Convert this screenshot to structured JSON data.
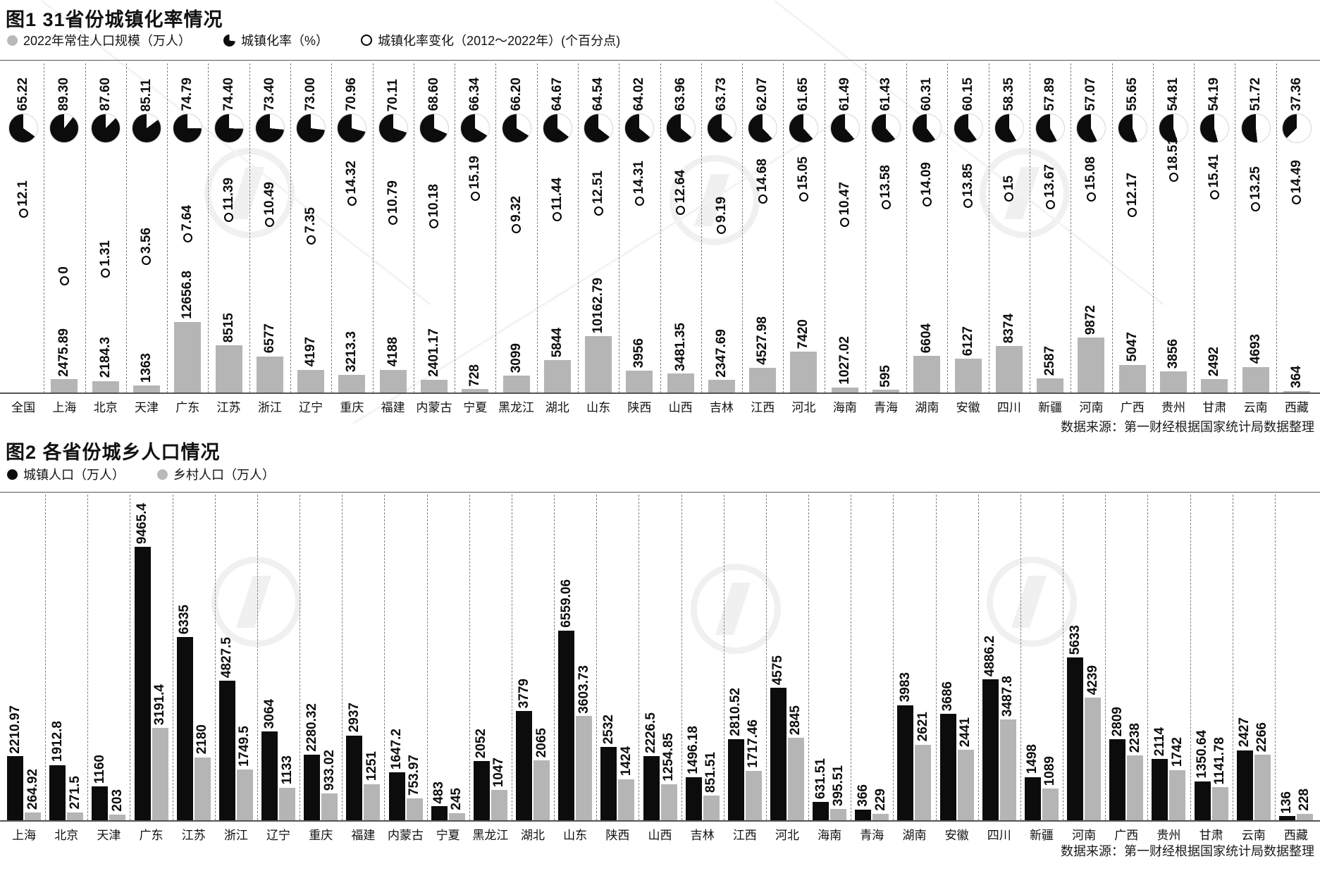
{
  "chart1": {
    "title": "图1 31省份城镇化率情况",
    "legend": {
      "population": "2022年常住人口规模（万人）",
      "rate": "城镇化率（%）",
      "change": "城镇化率变化（2012～2022年）(个百分点)"
    },
    "source": "数据来源：第一财经根据国家统计局数据整理"
  },
  "chart2": {
    "title": "图2 各省份城乡人口情况",
    "legend": {
      "urban": "城镇人口（万人）",
      "rural": "乡村人口（万人）"
    },
    "source": "数据来源：第一财经根据国家统计局数据整理"
  },
  "colors": {
    "bar_gray": "#b5b5b5",
    "bar_black": "#0c0c0c",
    "pie_black": "#0c0c0c"
  },
  "chart_data": [
    {
      "type": "bar",
      "title": "图1 31省份城镇化率情况",
      "legend_position": "top",
      "grid": "vertical-dashed",
      "categories": [
        "全国",
        "上海",
        "北京",
        "天津",
        "广东",
        "江苏",
        "浙江",
        "辽宁",
        "重庆",
        "福建",
        "内蒙古",
        "宁夏",
        "黑龙江",
        "湖北",
        "山东",
        "陕西",
        "山西",
        "吉林",
        "江西",
        "河北",
        "海南",
        "青海",
        "湖南",
        "安徽",
        "四川",
        "新疆",
        "河南",
        "广西",
        "贵州",
        "甘肃",
        "云南",
        "西藏"
      ],
      "series": [
        {
          "name": "城镇化率（%）",
          "marker": "pie",
          "values": [
            65.22,
            89.3,
            87.6,
            85.11,
            74.79,
            74.4,
            73.4,
            73.0,
            70.96,
            70.11,
            68.6,
            66.34,
            66.2,
            64.67,
            64.54,
            64.02,
            63.96,
            63.73,
            62.07,
            61.65,
            61.49,
            61.43,
            60.31,
            60.15,
            58.35,
            57.89,
            57.07,
            55.65,
            54.81,
            54.19,
            51.72,
            37.36
          ],
          "labels": [
            "65.22",
            "89.30",
            "87.60",
            "85.11",
            "74.79",
            "74.40",
            "73.40",
            "73.00",
            "70.96",
            "70.11",
            "68.60",
            "66.34",
            "66.20",
            "64.67",
            "64.54",
            "64.02",
            "63.96",
            "63.73",
            "62.07",
            "61.65",
            "61.49",
            "61.43",
            "60.31",
            "60.15",
            "58.35",
            "57.89",
            "57.07",
            "55.65",
            "54.81",
            "54.19",
            "51.72",
            "37.36"
          ]
        },
        {
          "name": "城镇化率变化（2012～2022年）(个百分点)",
          "marker": "circle",
          "values": [
            12.1,
            0,
            1.31,
            3.56,
            7.64,
            11.39,
            10.49,
            7.35,
            14.32,
            10.79,
            10.18,
            15.19,
            9.32,
            11.44,
            12.51,
            14.31,
            12.64,
            9.19,
            14.68,
            15.05,
            10.47,
            13.58,
            14.09,
            13.85,
            15,
            13.67,
            15.08,
            12.17,
            18.51,
            15.41,
            13.25,
            14.49
          ],
          "labels": [
            "12.1",
            "0",
            "1.31",
            "3.56",
            "7.64",
            "11.39",
            "10.49",
            "7.35",
            "14.32",
            "10.79",
            "10.18",
            "15.19",
            "9.32",
            "11.44",
            "12.51",
            "14.31",
            "12.64",
            "9.19",
            "14.68",
            "15.05",
            "10.47",
            "13.58",
            "14.09",
            "13.85",
            "15",
            "13.67",
            "15.08",
            "12.17",
            "18.51",
            "15.41",
            "13.25",
            "14.49"
          ]
        },
        {
          "name": "2022年常住人口规模（万人）",
          "marker": "bar",
          "color": "#b5b5b5",
          "values": [
            null,
            2475.89,
            2184.3,
            1363,
            12656.8,
            8515,
            6577,
            4197,
            3213.3,
            4188,
            2401.17,
            728,
            3099,
            5844,
            10162.79,
            3956,
            3481.35,
            2347.69,
            4527.98,
            7420,
            1027.02,
            595,
            6604,
            6127,
            8374,
            2587,
            9872,
            5047,
            3856,
            2492,
            4693,
            364
          ],
          "labels": [
            "",
            "2475.89",
            "2184.3",
            "1363",
            "12656.8",
            "8515",
            "6577",
            "4197",
            "3213.3",
            "4188",
            "2401.17",
            "728",
            "3099",
            "5844",
            "10162.79",
            "3956",
            "3481.35",
            "2347.69",
            "4527.98",
            "7420",
            "1027.02",
            "595",
            "6604",
            "6127",
            "8374",
            "2587",
            "9872",
            "5047",
            "3856",
            "2492",
            "4693",
            "364"
          ]
        }
      ]
    },
    {
      "type": "bar",
      "title": "图2 各省份城乡人口情况",
      "legend_position": "top",
      "grid": "vertical-dashed",
      "categories": [
        "上海",
        "北京",
        "天津",
        "广东",
        "江苏",
        "浙江",
        "辽宁",
        "重庆",
        "福建",
        "内蒙古",
        "宁夏",
        "黑龙江",
        "湖北",
        "山东",
        "陕西",
        "山西",
        "吉林",
        "江西",
        "河北",
        "海南",
        "青海",
        "湖南",
        "安徽",
        "四川",
        "新疆",
        "河南",
        "广西",
        "贵州",
        "甘肃",
        "云南",
        "西藏"
      ],
      "series": [
        {
          "name": "城镇人口（万人）",
          "marker": "bar",
          "color": "#0c0c0c",
          "values": [
            2210.97,
            1912.8,
            1160,
            9465.4,
            6335,
            4827.5,
            3064,
            2280.32,
            2937,
            1647.2,
            483,
            2052,
            3779,
            6559.06,
            2532,
            2226.5,
            1496.18,
            2810.52,
            4575,
            631.51,
            366,
            3983,
            3686,
            4886.2,
            1498,
            5633,
            2809,
            2114,
            1350.64,
            2427,
            136
          ],
          "labels": [
            "2210.97",
            "1912.8",
            "1160",
            "9465.4",
            "6335",
            "4827.5",
            "3064",
            "2280.32",
            "2937",
            "1647.2",
            "483",
            "2052",
            "3779",
            "6559.06",
            "2532",
            "2226.5",
            "1496.18",
            "2810.52",
            "4575",
            "631.51",
            "366",
            "3983",
            "3686",
            "4886.2",
            "1498",
            "5633",
            "2809",
            "2114",
            "1350.64",
            "2427",
            "136"
          ]
        },
        {
          "name": "乡村人口（万人）",
          "marker": "bar",
          "color": "#b5b5b5",
          "values": [
            264.92,
            271.5,
            203,
            3191.4,
            2180,
            1749.5,
            1133,
            933.02,
            1251,
            753.97,
            245,
            1047,
            2065,
            3603.73,
            1424,
            1254.85,
            851.51,
            1717.46,
            2845,
            395.51,
            229,
            2621,
            2441,
            3487.8,
            1089,
            4239,
            2238,
            1742,
            1141.78,
            2266,
            228
          ],
          "labels": [
            "264.92",
            "271.5",
            "203",
            "3191.4",
            "2180",
            "1749.5",
            "1133",
            "933.02",
            "1251",
            "753.97",
            "245",
            "1047",
            "2065",
            "3603.73",
            "1424",
            "1254.85",
            "851.51",
            "1717.46",
            "2845",
            "395.51",
            "229",
            "2621",
            "2441",
            "3487.8",
            "1089",
            "4239",
            "2238",
            "1742",
            "1141.78",
            "2266",
            "228"
          ]
        }
      ]
    }
  ]
}
